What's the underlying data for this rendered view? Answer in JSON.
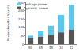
{
  "chart_data": {
    "type": "bar",
    "stacked": true,
    "y_label": "Power density (W/cm²)",
    "categories": [
      "90",
      "65",
      "45",
      "32",
      "22"
    ],
    "series": [
      {
        "name": "Dynamic power",
        "color": "#555555",
        "values": [
          35,
          45,
          55,
          70,
          85
        ]
      },
      {
        "name": "Leakage power",
        "color": "#5bc8f0",
        "values": [
          15,
          30,
          55,
          105,
          150
        ]
      }
    ],
    "ylim": [
      0,
      250
    ],
    "yticks": [
      0,
      50,
      100,
      150,
      200,
      250
    ],
    "grid": false,
    "legend": "upper left"
  }
}
